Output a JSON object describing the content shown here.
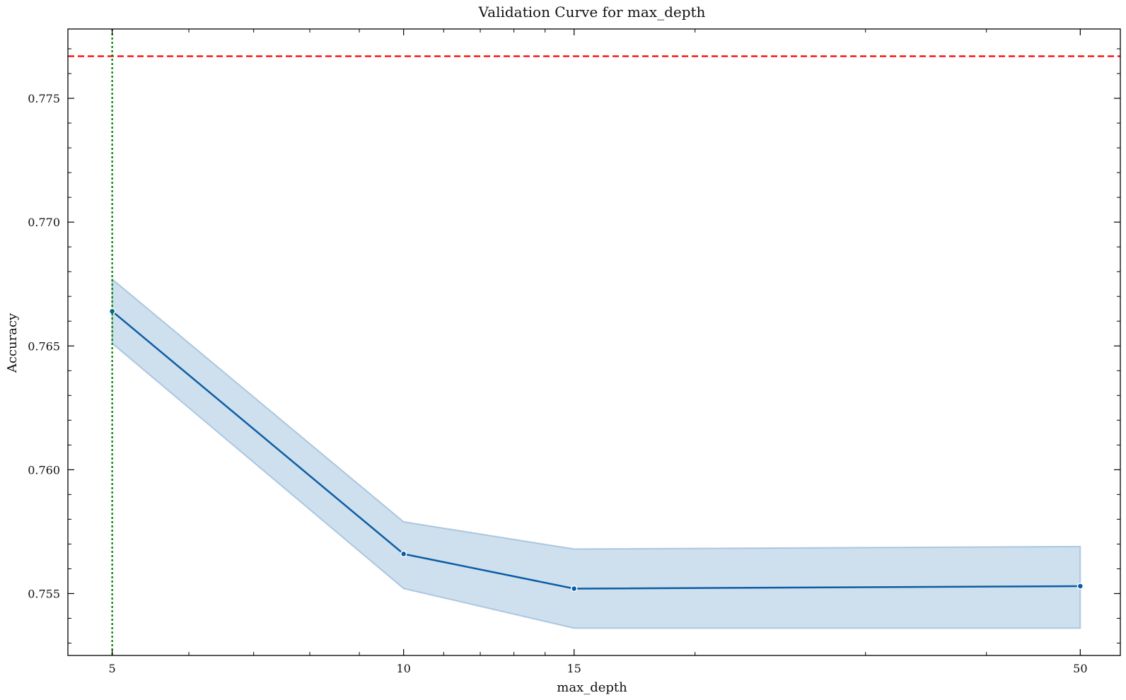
{
  "chart_data": {
    "type": "line",
    "title": "Validation Curve for max_depth",
    "xlabel": "max_depth",
    "ylabel": "Accuracy",
    "xscale": "log",
    "xlim": [
      4.5,
      55
    ],
    "ylim": [
      0.7525,
      0.7778
    ],
    "x_ticks": [
      5,
      10,
      15,
      50
    ],
    "y_ticks": [
      0.755,
      0.76,
      0.765,
      0.77,
      0.775
    ],
    "x_tick_labels": [
      "5",
      "10",
      "15",
      "50"
    ],
    "y_tick_labels": [
      "0.755",
      "0.760",
      "0.765",
      "0.770",
      "0.775"
    ],
    "series": [
      {
        "x": [
          5,
          10,
          15,
          50
        ],
        "y": [
          0.7664,
          0.7566,
          0.7552,
          0.7553
        ],
        "lower": [
          0.7651,
          0.7552,
          0.7536,
          0.7536
        ],
        "upper": [
          0.7677,
          0.7579,
          0.7568,
          0.7569
        ],
        "color": "#0C5DA5",
        "band_color": "#0C5DA5"
      }
    ],
    "reference_lines": [
      {
        "orientation": "horizontal",
        "value": 0.7767,
        "color": "#FF0000",
        "style": "dashed"
      },
      {
        "orientation": "vertical",
        "value": 5,
        "color": "#008000",
        "style": "dotted"
      }
    ],
    "grid": false,
    "legend": "none"
  }
}
